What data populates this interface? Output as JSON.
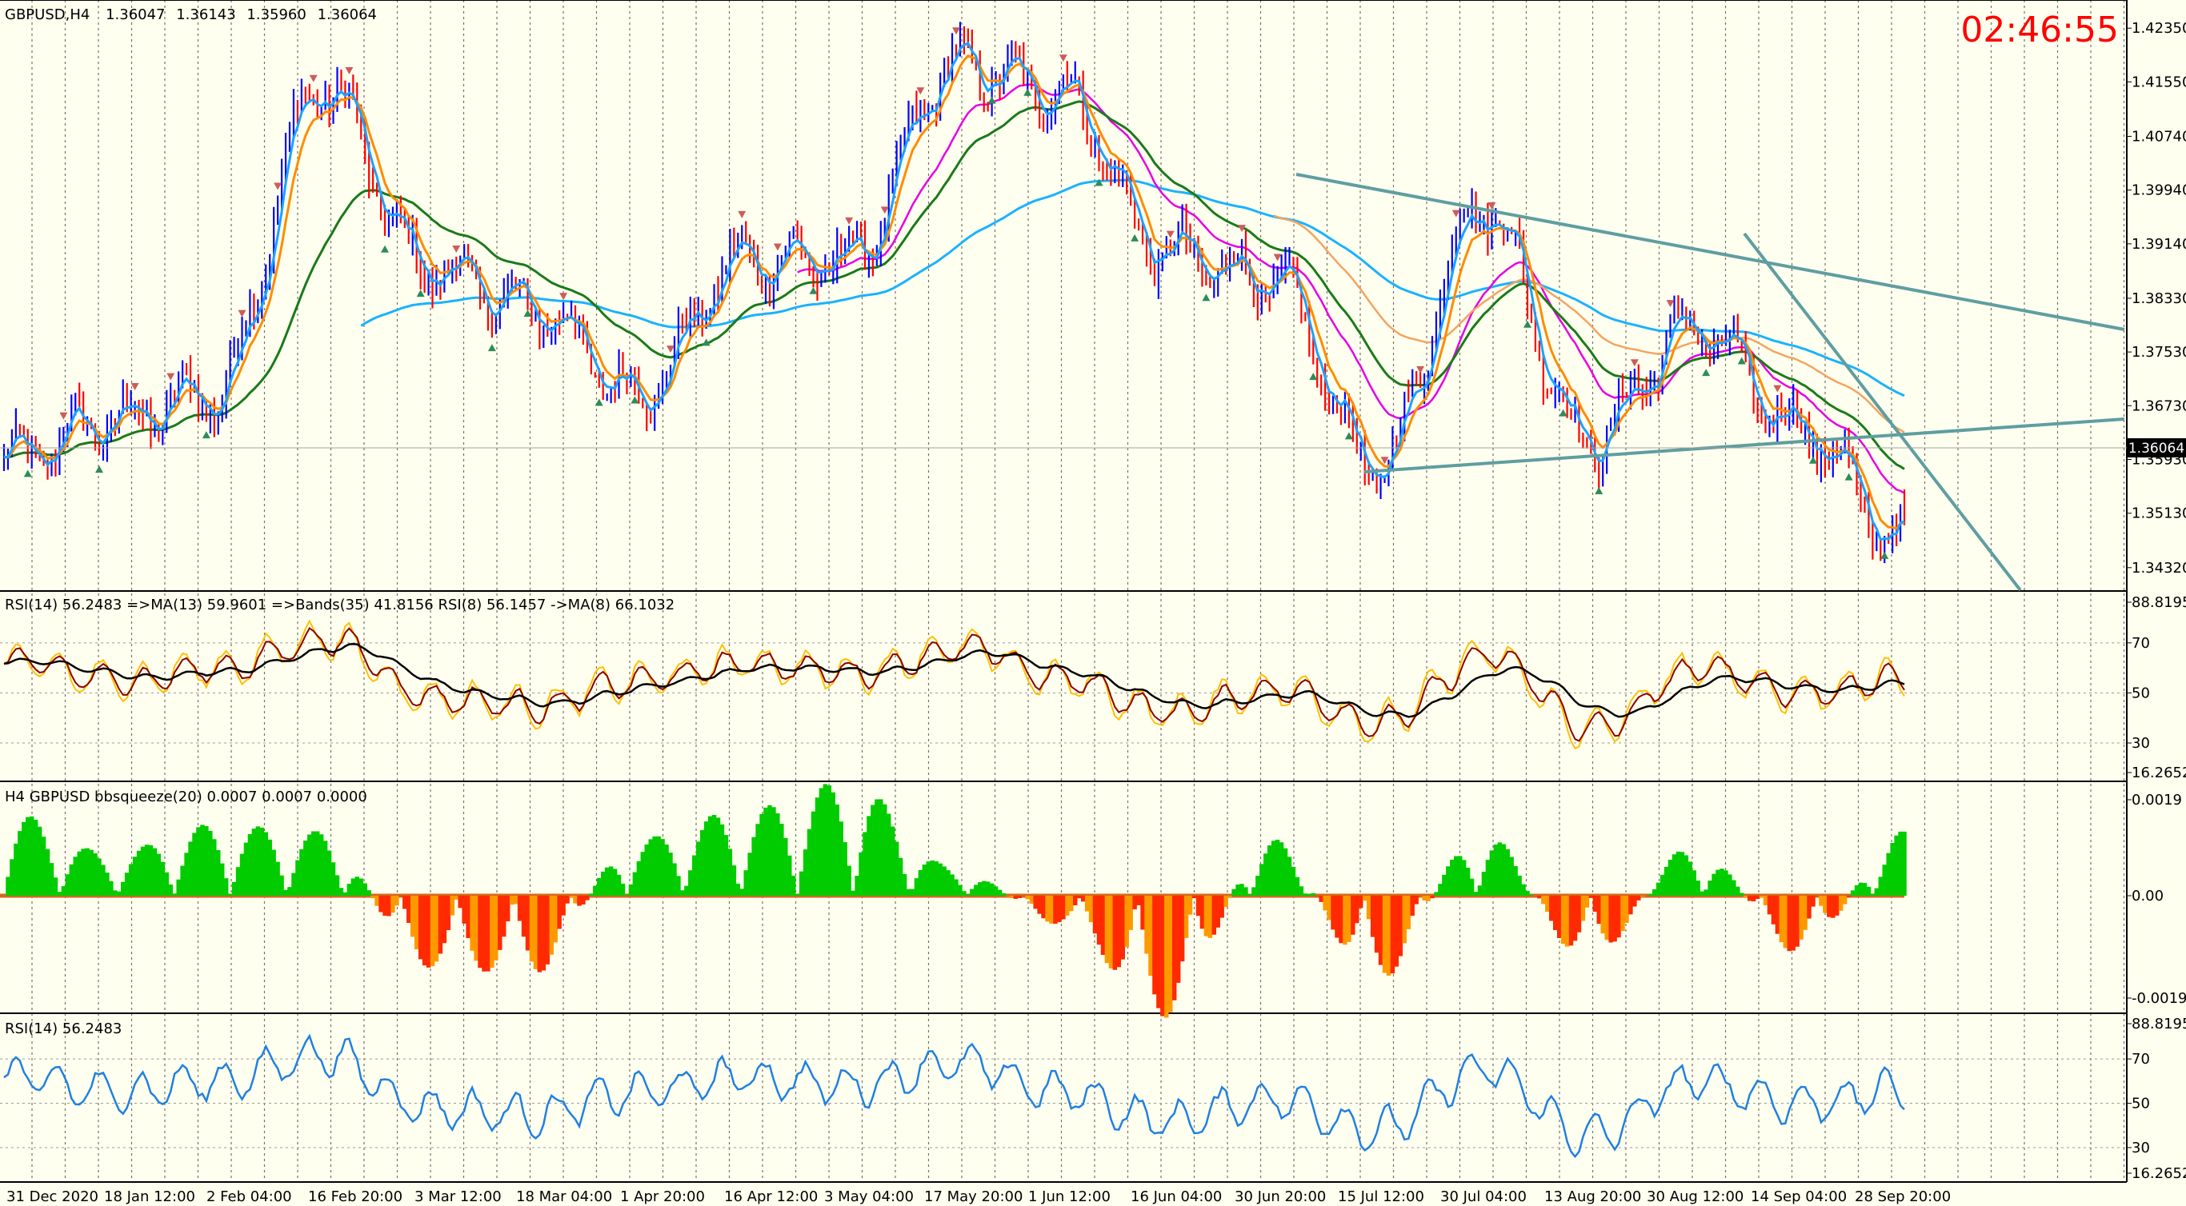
{
  "symbol_header": {
    "symbol": "GBPUSD,H4",
    "open": "1.36047",
    "high": "1.36143",
    "low": "1.35960",
    "close": "1.36064"
  },
  "clock": "02:46:55",
  "current_price": "1.36064",
  "price_axis": [
    "1.42350",
    "1.41550",
    "1.40740",
    "1.39940",
    "1.39140",
    "1.38330",
    "1.37530",
    "1.36730",
    "1.35930",
    "1.35130",
    "1.34320"
  ],
  "x_axis_labels": [
    "31 Dec 2020",
    "18 Jan 12:00",
    "2 Feb 04:00",
    "16 Feb 20:00",
    "3 Mar 12:00",
    "18 Mar 04:00",
    "1 Apr 20:00",
    "16 Apr 12:00",
    "3 May 04:00",
    "17 May 20:00",
    "1 Jun 12:00",
    "16 Jun 04:00",
    "30 Jun 20:00",
    "15 Jul 12:00",
    "30 Jul 04:00",
    "13 Aug 20:00",
    "30 Aug 12:00",
    "14 Sep 04:00",
    "28 Sep 20:00"
  ],
  "rsi_panel": {
    "label": "RSI(14) 56.2483 =>MA(13) 59.9601 =>Bands(35) 41.8156 RSI(8) 56.1457 ->MA(8) 66.1032",
    "axis": [
      "88.8195",
      "70",
      "50",
      "30",
      "16.2652"
    ]
  },
  "squeeze_panel": {
    "label": "H4 GBPUSD bbsqueeze(20) 0.0007 0.0007 0.0000",
    "axis": [
      "0.0019",
      "0.00",
      "-0.0019"
    ]
  },
  "rsi2_panel": {
    "label": "RSI(14) 56.2483",
    "axis": [
      "88.8195",
      "70",
      "50",
      "30",
      "16.2652"
    ]
  },
  "colors": {
    "background": "#fffff0",
    "bull_bar": "#0000ff",
    "bear_bar": "#ff0000",
    "ma_fast_light": "#1aa3ff",
    "ma_orange": "#ff8c00",
    "ma_green": "#1a7a1a",
    "ma_magenta": "#e600e6",
    "ma_200": "#1ab2ff",
    "trendline": "#5f9ea0",
    "squeeze_pos": "#00cc00",
    "squeeze_neg": "#ff2a00",
    "squeeze_neg_light": "#ff9900",
    "rsi_line": "#2080e0",
    "clock": "#ff0000"
  },
  "chart_data": [
    {
      "type": "line",
      "title": "GBPUSD,H4",
      "ylim": [
        1.3402,
        1.4265
      ],
      "x": [
        "31 Dec 2020",
        "18 Jan 12:00",
        "2 Feb 04:00",
        "16 Feb 20:00",
        "3 Mar 12:00",
        "18 Mar 04:00",
        "1 Apr 20:00",
        "16 Apr 12:00",
        "3 May 04:00",
        "17 May 20:00",
        "1 Jun 12:00",
        "16 Jun 04:00",
        "30 Jun 20:00",
        "15 Jul 12:00",
        "30 Jul 04:00",
        "13 Aug 20:00",
        "30 Aug 12:00",
        "14 Sep 04:00",
        "28 Sep 20:00"
      ],
      "series": [
        {
          "values": [
            1.359,
            1.365,
            1.369,
            1.415,
            1.388,
            1.382,
            1.369,
            1.389,
            1.389,
            1.418,
            1.414,
            1.39,
            1.386,
            1.358,
            1.397,
            1.362,
            1.379,
            1.364,
            1.347
          ]
        }
      ]
    },
    {
      "type": "line",
      "ylim": [
        16.2652,
        88.8195
      ],
      "x": [
        "31 Dec 2020",
        "18 Jan 12:00",
        "2 Feb 04:00",
        "16 Feb 20:00",
        "3 Mar 12:00",
        "18 Mar 04:00",
        "1 Apr 20:00",
        "16 Apr 12:00",
        "3 May 04:00",
        "17 May 20:00",
        "1 Jun 12:00",
        "16 Jun 04:00",
        "30 Jun 20:00",
        "15 Jul 12:00",
        "30 Jul 04:00",
        "13 Aug 20:00",
        "30 Aug 12:00",
        "14 Sep 04:00",
        "28 Sep 20:00"
      ],
      "series": [
        {
          "values": [
            62,
            55,
            60,
            72,
            48,
            45,
            55,
            62,
            58,
            68,
            55,
            42,
            52,
            38,
            65,
            35,
            60,
            50,
            56
          ]
        }
      ]
    },
    {
      "type": "bar",
      "ylim": [
        -0.0019,
        0.0019
      ],
      "x": [
        "31 Dec 2020",
        "18 Jan 12:00",
        "2 Feb 04:00",
        "16 Feb 20:00",
        "3 Mar 12:00",
        "18 Mar 04:00",
        "1 Apr 20:00",
        "16 Apr 12:00",
        "3 May 04:00",
        "17 May 20:00",
        "1 Jun 12:00",
        "16 Jun 04:00",
        "30 Jun 20:00",
        "15 Jul 12:00",
        "30 Jul 04:00",
        "13 Aug 20:00",
        "30 Aug 12:00",
        "14 Sep 04:00",
        "28 Sep 20:00"
      ],
      "series": [
        {
          "values": [
            0.0012,
            0.0006,
            0.001,
            0.0009,
            -0.001,
            -0.0011,
            0.0008,
            0.0012,
            0.0016,
            0.0004,
            -0.0004,
            -0.0017,
            0.0008,
            -0.0012,
            0.0009,
            -0.0009,
            0.0007,
            -0.0008,
            0.0009
          ]
        }
      ]
    },
    {
      "type": "line",
      "ylim": [
        16.2652,
        88.8195
      ],
      "x": [
        "31 Dec 2020",
        "18 Jan 12:00",
        "2 Feb 04:00",
        "16 Feb 20:00",
        "3 Mar 12:00",
        "18 Mar 04:00",
        "1 Apr 20:00",
        "16 Apr 12:00",
        "3 May 04:00",
        "17 May 20:00",
        "1 Jun 12:00",
        "16 Jun 04:00",
        "30 Jun 20:00",
        "15 Jul 12:00",
        "30 Jul 04:00",
        "13 Aug 20:00",
        "30 Aug 12:00",
        "14 Sep 04:00",
        "28 Sep 20:00"
      ],
      "series": [
        {
          "values": [
            62,
            55,
            60,
            72,
            48,
            45,
            55,
            62,
            58,
            68,
            55,
            42,
            52,
            38,
            65,
            35,
            60,
            50,
            56
          ]
        }
      ]
    }
  ]
}
